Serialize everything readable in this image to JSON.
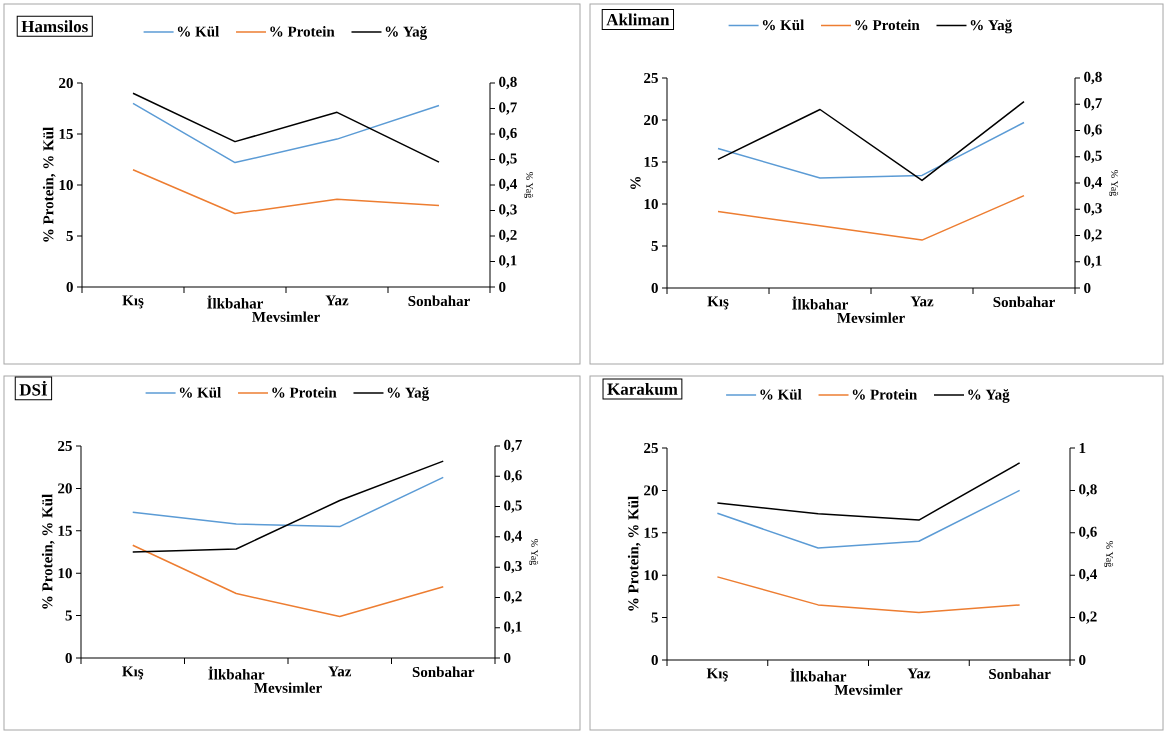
{
  "chart_data": [
    {
      "type": "line",
      "title": "Hamsilos",
      "xlabel": "Mevsimler",
      "ylabel": "% Protein, % Kül",
      "y2label": "% Yağ",
      "categories": [
        "Kış",
        "İlkbahar",
        "Yaz",
        "Sonbahar"
      ],
      "legend": "top",
      "ylim": [
        0,
        20
      ],
      "yticks": [
        0,
        5,
        10,
        15,
        20
      ],
      "y2lim": [
        0,
        0.8
      ],
      "y2ticks": [
        0,
        {
          "value": 0.1,
          "label": "0,1"
        },
        {
          "value": 0.2,
          "label": "0,2"
        },
        {
          "value": 0.3,
          "label": "0,3"
        },
        {
          "value": 0.4,
          "label": "0,4"
        },
        {
          "value": 0.5,
          "label": "0,5"
        },
        {
          "value": 0.6,
          "label": "0,6"
        },
        {
          "value": 0.7,
          "label": "0,7"
        },
        {
          "value": 0.8,
          "label": "0,8"
        }
      ],
      "series": [
        {
          "name": "% Kül",
          "color": "#5b9bd5",
          "values": [
            18.0,
            12.2,
            14.5,
            17.8
          ]
        },
        {
          "name": "% Protein",
          "color": "#ed7d31",
          "values": [
            11.5,
            7.2,
            8.6,
            8.0
          ]
        },
        {
          "name": "% Yağ",
          "color": "#000000",
          "axis": "y2",
          "values": [
            0.76,
            0.57,
            0.685,
            0.49
          ]
        }
      ]
    },
    {
      "type": "line",
      "title": "Akliman",
      "xlabel": "Mevsimler",
      "ylabel": "%",
      "y2label": "% Yağ",
      "categories": [
        "Kış",
        "İlkbahar",
        "Yaz",
        "Sonbahar"
      ],
      "legend": "top",
      "ylim": [
        0,
        25
      ],
      "yticks": [
        0,
        5,
        10,
        15,
        20,
        25
      ],
      "y2lim": [
        0,
        0.8
      ],
      "y2ticks": [
        0,
        {
          "value": 0.1,
          "label": "0,1"
        },
        {
          "value": 0.2,
          "label": "0,2"
        },
        {
          "value": 0.3,
          "label": "0,3"
        },
        {
          "value": 0.4,
          "label": "0,4"
        },
        {
          "value": 0.5,
          "label": "0,5"
        },
        {
          "value": 0.6,
          "label": "0,6"
        },
        {
          "value": 0.7,
          "label": "0,7"
        },
        {
          "value": 0.8,
          "label": "0,8"
        }
      ],
      "series": [
        {
          "name": "% Kül",
          "color": "#5b9bd5",
          "values": [
            16.6,
            13.1,
            13.4,
            19.7
          ]
        },
        {
          "name": "% Protein",
          "color": "#ed7d31",
          "values": [
            9.1,
            7.4,
            5.7,
            11.0
          ]
        },
        {
          "name": "% Yağ",
          "color": "#000000",
          "axis": "y2",
          "values": [
            0.49,
            0.68,
            0.41,
            0.71
          ]
        }
      ]
    },
    {
      "type": "line",
      "title": "DSİ",
      "xlabel": "Mevsimler",
      "ylabel": "% Protein, % Kül",
      "y2label": "% Yağ",
      "categories": [
        "Kış",
        "İlkbahar",
        "Yaz",
        "Sonbahar"
      ],
      "legend": "top",
      "ylim": [
        0,
        25
      ],
      "yticks": [
        0,
        5,
        10,
        15,
        20,
        25
      ],
      "y2lim": [
        0,
        0.7
      ],
      "y2ticks": [
        0,
        {
          "value": 0.1,
          "label": "0,1"
        },
        {
          "value": 0.2,
          "label": "0,2"
        },
        {
          "value": 0.3,
          "label": "0,3"
        },
        {
          "value": 0.4,
          "label": "0,4"
        },
        {
          "value": 0.5,
          "label": "0,5"
        },
        {
          "value": 0.6,
          "label": "0,6"
        },
        {
          "value": 0.7,
          "label": "0,7"
        }
      ],
      "series": [
        {
          "name": "% Kül",
          "color": "#5b9bd5",
          "values": [
            17.2,
            15.8,
            15.5,
            21.3
          ]
        },
        {
          "name": "% Protein",
          "color": "#ed7d31",
          "values": [
            13.3,
            7.6,
            4.9,
            8.4
          ]
        },
        {
          "name": "% Yağ",
          "color": "#000000",
          "axis": "y2",
          "values": [
            0.35,
            0.36,
            0.52,
            0.65
          ]
        }
      ]
    },
    {
      "type": "line",
      "title": "Karakum",
      "xlabel": "Mevsimler",
      "ylabel": "% Protein, % Kül",
      "y2label": "% Yağ",
      "categories": [
        "Kış",
        "İlkbahar",
        "Yaz",
        "Sonbahar"
      ],
      "legend": "top",
      "ylim": [
        0,
        25
      ],
      "yticks": [
        0,
        5,
        10,
        15,
        20,
        25
      ],
      "y2lim": [
        0,
        1
      ],
      "y2ticks": [
        0,
        {
          "value": 0.2,
          "label": "0,2"
        },
        {
          "value": 0.4,
          "label": "0,4"
        },
        {
          "value": 0.6,
          "label": "0,6"
        },
        {
          "value": 0.8,
          "label": "0,8"
        },
        1
      ],
      "series": [
        {
          "name": "% Kül",
          "color": "#5b9bd5",
          "values": [
            17.3,
            13.2,
            14.0,
            20.0
          ]
        },
        {
          "name": "% Protein",
          "color": "#ed7d31",
          "values": [
            9.8,
            6.5,
            5.6,
            6.5
          ]
        },
        {
          "name": "% Yağ",
          "color": "#000000",
          "axis": "y2",
          "values": [
            0.74,
            0.69,
            0.66,
            0.93
          ]
        }
      ]
    }
  ]
}
